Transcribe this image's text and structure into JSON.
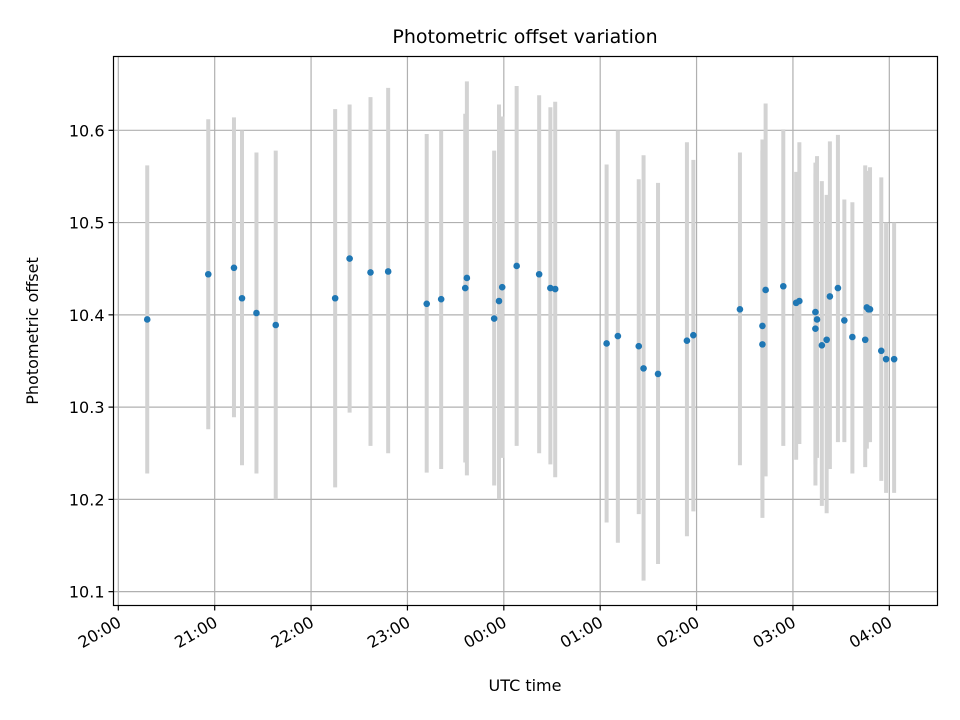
{
  "chart_data": {
    "type": "scatter",
    "title": "Photometric offset variation",
    "xlabel": "UTC time",
    "ylabel": "Photometric offset",
    "xlim": [
      "19:57",
      "04:30"
    ],
    "ylim": [
      10.085,
      10.68
    ],
    "x_ticks": [
      "20:00",
      "21:00",
      "22:00",
      "23:00",
      "00:00",
      "01:00",
      "02:00",
      "03:00",
      "04:00"
    ],
    "y_ticks": [
      "10.1",
      "10.2",
      "10.3",
      "10.4",
      "10.5",
      "10.6"
    ],
    "grid": true,
    "colors": {
      "point": "#1f77b4",
      "errorbar": "#d3d3d3",
      "grid": "#b0b0b0"
    },
    "x": [
      "20:18",
      "20:56",
      "21:12",
      "21:17",
      "21:26",
      "21:38",
      "22:15",
      "22:24",
      "22:37",
      "22:48",
      "23:12",
      "23:21",
      "23:36",
      "23:37",
      "23:54",
      "23:57",
      "23:59",
      "00:08",
      "00:22",
      "00:29",
      "00:32",
      "01:04",
      "01:11",
      "01:24",
      "01:27",
      "01:36",
      "01:54",
      "01:58",
      "02:27",
      "02:41",
      "02:41",
      "02:43",
      "02:54",
      "03:02",
      "03:04",
      "03:14",
      "03:14",
      "03:15",
      "03:18",
      "03:21",
      "03:23",
      "03:28",
      "03:32",
      "03:37",
      "03:45",
      "03:46",
      "03:47",
      "03:48",
      "03:55",
      "03:58",
      "04:03"
    ],
    "y": [
      10.395,
      10.444,
      10.451,
      10.418,
      10.402,
      10.389,
      10.418,
      10.461,
      10.446,
      10.447,
      10.412,
      10.417,
      10.429,
      10.44,
      10.396,
      10.415,
      10.43,
      10.453,
      10.444,
      10.429,
      10.428,
      10.369,
      10.377,
      10.366,
      10.342,
      10.336,
      10.372,
      10.378,
      10.406,
      10.388,
      10.368,
      10.427,
      10.431,
      10.413,
      10.415,
      10.403,
      10.385,
      10.395,
      10.367,
      10.373,
      10.42,
      10.429,
      10.394,
      10.376,
      10.373,
      10.408,
      10.406,
      10.406,
      10.361,
      10.352,
      10.352
    ],
    "y_err_low": [
      10.228,
      10.276,
      10.289,
      10.237,
      10.228,
      10.2,
      10.213,
      10.294,
      10.258,
      10.25,
      10.229,
      10.233,
      10.24,
      10.226,
      10.215,
      10.2,
      10.245,
      10.258,
      10.25,
      10.238,
      10.224,
      10.175,
      10.153,
      10.184,
      10.112,
      10.13,
      10.16,
      10.187,
      10.237,
      10.18,
      10.2,
      10.225,
      10.258,
      10.243,
      10.26,
      10.215,
      10.238,
      10.245,
      10.193,
      10.185,
      10.233,
      10.262,
      10.262,
      10.228,
      10.235,
      10.255,
      10.262,
      10.262,
      10.22,
      10.207,
      10.207
    ],
    "y_err_high": [
      10.562,
      10.612,
      10.614,
      10.6,
      10.576,
      10.578,
      10.623,
      10.628,
      10.636,
      10.646,
      10.596,
      10.6,
      10.618,
      10.653,
      10.578,
      10.628,
      10.615,
      10.648,
      10.638,
      10.625,
      10.631,
      10.563,
      10.6,
      10.547,
      10.573,
      10.543,
      10.587,
      10.568,
      10.576,
      10.578,
      10.59,
      10.629,
      10.601,
      10.555,
      10.587,
      10.565,
      10.553,
      10.572,
      10.545,
      10.53,
      10.588,
      10.595,
      10.525,
      10.522,
      10.562,
      10.553,
      10.556,
      10.56,
      10.549,
      10.5,
      10.5
    ]
  }
}
